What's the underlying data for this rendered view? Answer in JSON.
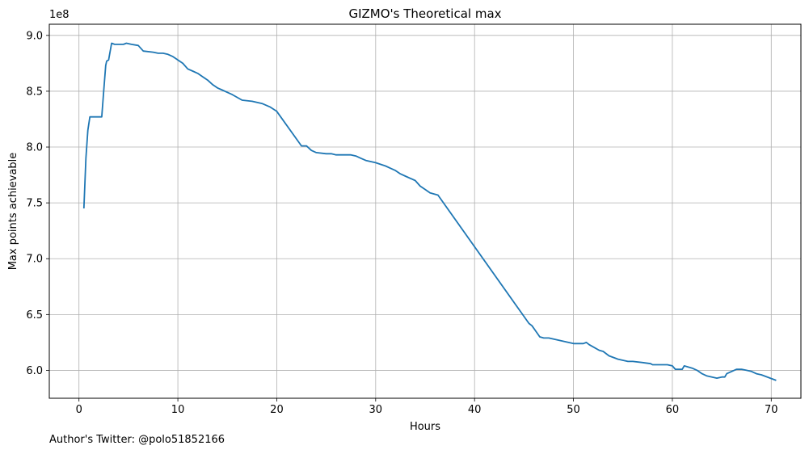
{
  "chart_data": {
    "type": "line",
    "title": "GIZMO's Theoretical max",
    "xlabel": "Hours",
    "ylabel": "Max points achievable",
    "y_offset_label": "1e8",
    "xlim": [
      -3,
      73
    ],
    "ylim": [
      5.75,
      9.1
    ],
    "x_ticks": [
      0,
      10,
      20,
      30,
      40,
      50,
      60,
      70
    ],
    "x_tick_labels": [
      "0",
      "10",
      "20",
      "30",
      "40",
      "50",
      "60",
      "70"
    ],
    "y_ticks": [
      6.0,
      6.5,
      7.0,
      7.5,
      8.0,
      8.5,
      9.0
    ],
    "y_tick_labels": [
      "6.0",
      "6.5",
      "7.0",
      "7.5",
      "8.0",
      "8.5",
      "9.0"
    ],
    "grid": true,
    "series": [
      {
        "color": "#1f77b4",
        "x": [
          0.5,
          0.7,
          0.9,
          1.1,
          1.3,
          2.3,
          2.5,
          2.7,
          2.8,
          3.0,
          3.3,
          3.6,
          4.0,
          4.5,
          4.8,
          5.3,
          6.0,
          6.5,
          7.5,
          8.0,
          8.5,
          9.0,
          9.5,
          10.0,
          10.5,
          11.0,
          11.5,
          12.0,
          12.5,
          13.0,
          13.5,
          14.0,
          14.5,
          15.0,
          15.5,
          16.5,
          17.5,
          18.5,
          19.3,
          20.0,
          22.5,
          23.0,
          23.5,
          24.0,
          25.0,
          25.5,
          26.0,
          27.5,
          28.0,
          28.5,
          29.0,
          29.5,
          30.0,
          31.0,
          31.5,
          32.0,
          32.5,
          33.0,
          34.0,
          34.5,
          35.0,
          35.5,
          36.3,
          45.5,
          45.8,
          46.2,
          46.6,
          47.0,
          47.5,
          48.0,
          48.5,
          49.0,
          49.5,
          50.0,
          51.0,
          51.3,
          51.6,
          52.0,
          52.6,
          53.0,
          53.6,
          54.5,
          55.0,
          55.5,
          56.0,
          57.0,
          57.8,
          58.0,
          59.5,
          60.0,
          60.3,
          61.0,
          61.2,
          62.0,
          62.5,
          63.0,
          63.5,
          64.0,
          64.5,
          65.0,
          65.3,
          65.5,
          66.0,
          66.5,
          67.0,
          67.5,
          68.0,
          68.5,
          69.0,
          70.5
        ],
        "y": [
          7.45,
          7.9,
          8.15,
          8.27,
          8.27,
          8.27,
          8.5,
          8.73,
          8.77,
          8.78,
          8.93,
          8.92,
          8.92,
          8.92,
          8.93,
          8.92,
          8.91,
          8.86,
          8.85,
          8.84,
          8.84,
          8.83,
          8.81,
          8.78,
          8.75,
          8.7,
          8.68,
          8.66,
          8.63,
          8.6,
          8.56,
          8.53,
          8.51,
          8.49,
          8.47,
          8.42,
          8.41,
          8.39,
          8.36,
          8.32,
          8.01,
          8.01,
          7.97,
          7.95,
          7.94,
          7.94,
          7.93,
          7.93,
          7.92,
          7.9,
          7.88,
          7.87,
          7.86,
          7.83,
          7.81,
          7.79,
          7.76,
          7.74,
          7.7,
          7.65,
          7.62,
          7.59,
          7.57,
          6.42,
          6.4,
          6.35,
          6.3,
          6.29,
          6.29,
          6.28,
          6.27,
          6.26,
          6.25,
          6.24,
          6.24,
          6.25,
          6.23,
          6.21,
          6.18,
          6.17,
          6.13,
          6.1,
          6.09,
          6.08,
          6.08,
          6.07,
          6.06,
          6.05,
          6.05,
          6.04,
          6.01,
          6.01,
          6.04,
          6.02,
          6.0,
          5.97,
          5.95,
          5.94,
          5.93,
          5.94,
          5.94,
          5.97,
          5.99,
          6.01,
          6.01,
          6.0,
          5.99,
          5.97,
          5.96,
          5.91
        ]
      }
    ]
  },
  "footnote": "Author's Twitter: @polo51852166"
}
